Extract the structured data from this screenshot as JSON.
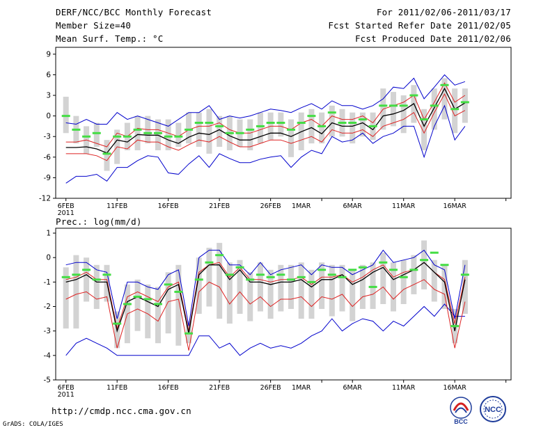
{
  "header": {
    "title": "DERF/NCC/BCC Monthly Forecast",
    "member_size": "Member Size=40",
    "variable1": "Mean Surf. Temp.: °C",
    "period": "For 2011/02/06-2011/03/17",
    "started": "Fcst Started Refer Date 2011/02/05",
    "produced": "Fcst Produced Date 2011/02/06"
  },
  "footer": {
    "url": "http://cmdp.ncc.cma.gov.cn",
    "credit": "GrADS: COLA/IGES",
    "logo_left": "BCC",
    "logo_right": "NCC"
  },
  "colors": {
    "box": "#d3d3d3",
    "median": "#44dd44",
    "mean": "#000000",
    "spread": "#dd2222",
    "extreme": "#0000cc",
    "frame": "#000000"
  },
  "chart_data": [
    {
      "type": "line",
      "title": "Mean Surf. Temp.: °C",
      "x": [
        1,
        2,
        3,
        4,
        5,
        6,
        7,
        8,
        9,
        10,
        11,
        12,
        13,
        14,
        15,
        16,
        17,
        18,
        19,
        20,
        21,
        22,
        23,
        24,
        25,
        26,
        27,
        28,
        29,
        30,
        31,
        32,
        33,
        34,
        35,
        36,
        37,
        38,
        39,
        40
      ],
      "x_tick_positions": [
        1,
        6,
        11,
        16,
        21,
        26,
        29,
        34,
        39,
        44
      ],
      "x_tick_labels": [
        "6FEB",
        "11FEB",
        "16FEB",
        "21FEB",
        "26FEB",
        "1MAR",
        "6MAR",
        "11MAR",
        "16MAR"
      ],
      "x_tick_label_positions": [
        1,
        6,
        11,
        16,
        21,
        24,
        29,
        34,
        39
      ],
      "year_label": "2011",
      "ylim": [
        -12,
        10
      ],
      "y_ticks": [
        -12,
        -9,
        -6,
        -3,
        0,
        3,
        6,
        9
      ],
      "series": [
        {
          "name": "ensemble-max",
          "values": [
            -9.8,
            -8.8,
            -8.8,
            -8.5,
            -9.5,
            -7.5,
            -7.5,
            -6.5,
            -5.8,
            -6.0,
            -8.3,
            -8.5,
            -7.0,
            -5.8,
            -7.5,
            -5.5,
            -6.2,
            -6.8,
            -6.8,
            -6.3,
            -6.0,
            -5.8,
            -7.5,
            -6.0,
            -5.0,
            -5.5,
            -3.0,
            -3.8,
            -3.5,
            -2.5,
            -4.0,
            -3.0,
            -2.5,
            -1.5,
            -1.5,
            -6.0,
            -1.5,
            1.5,
            -3.5,
            -1.5
          ]
        },
        {
          "name": "ensemble-min-bound",
          "values": [
            -1.0,
            -1.2,
            -0.5,
            -1.2,
            -1.2,
            0.5,
            -0.5,
            0.0,
            -0.5,
            -1.0,
            -1.5,
            -0.5,
            0.5,
            0.5,
            1.5,
            -0.5,
            0.0,
            -0.3,
            0.0,
            0.5,
            1.0,
            0.8,
            0.5,
            1.2,
            1.8,
            1.0,
            2.2,
            1.5,
            1.5,
            1.0,
            1.5,
            2.5,
            4.2,
            4.0,
            5.5,
            2.5,
            4.2,
            6.0,
            4.5,
            5.0
          ]
        },
        {
          "name": "spread-low",
          "values": [
            -5.5,
            -5.5,
            -5.5,
            -5.8,
            -6.5,
            -4.5,
            -4.8,
            -3.5,
            -3.8,
            -3.8,
            -4.5,
            -5.0,
            -4.2,
            -3.5,
            -3.8,
            -3.0,
            -3.8,
            -4.5,
            -4.5,
            -4.0,
            -3.5,
            -3.5,
            -4.0,
            -3.5,
            -3.0,
            -3.8,
            -2.0,
            -2.5,
            -2.5,
            -2.0,
            -3.0,
            -1.5,
            -1.0,
            -0.5,
            0.5,
            -2.5,
            0.5,
            3.2,
            0.0,
            0.8
          ]
        },
        {
          "name": "spread-high",
          "values": [
            -3.8,
            -3.8,
            -3.5,
            -4.0,
            -4.5,
            -2.5,
            -3.0,
            -1.8,
            -2.0,
            -2.0,
            -2.5,
            -3.0,
            -2.0,
            -1.5,
            -1.5,
            -1.0,
            -2.0,
            -2.5,
            -2.5,
            -2.0,
            -1.5,
            -1.5,
            -2.0,
            -1.0,
            -0.5,
            -1.5,
            0.0,
            -0.5,
            -0.5,
            0.0,
            -1.0,
            1.0,
            1.5,
            2.0,
            3.0,
            -0.5,
            2.0,
            4.8,
            2.0,
            3.0
          ]
        },
        {
          "name": "ensemble-mean",
          "values": [
            -4.6,
            -4.6,
            -4.5,
            -4.8,
            -5.4,
            -3.5,
            -3.8,
            -2.7,
            -2.8,
            -2.8,
            -3.5,
            -4.0,
            -3.1,
            -2.5,
            -2.7,
            -2.0,
            -2.9,
            -3.5,
            -3.5,
            -3.0,
            -2.5,
            -2.5,
            -3.0,
            -2.3,
            -1.7,
            -2.6,
            -1.0,
            -1.5,
            -1.5,
            -1.0,
            -2.0,
            0.0,
            0.3,
            0.8,
            1.8,
            -1.5,
            1.2,
            4.0,
            1.0,
            1.9
          ]
        },
        {
          "name": "ensemble-median",
          "values": [
            0.0,
            -2.0,
            -3.0,
            -2.5,
            -5.5,
            -3.0,
            -3.0,
            -2.0,
            -2.5,
            -2.5,
            -3.0,
            -3.0,
            -2.0,
            -1.0,
            -1.0,
            -1.5,
            -2.5,
            -2.5,
            -2.0,
            -1.5,
            -1.0,
            -1.0,
            -2.0,
            -1.0,
            0.0,
            -1.5,
            0.5,
            -1.0,
            -1.0,
            -0.5,
            -1.5,
            1.5,
            1.5,
            1.5,
            3.0,
            -0.5,
            1.5,
            4.5,
            1.0,
            2.0
          ]
        },
        {
          "name": "box-low",
          "values": [
            -2.5,
            -4.0,
            -5.5,
            -4.5,
            -8.0,
            -7.0,
            -5.0,
            -5.0,
            -4.0,
            -5.0,
            -5.0,
            -4.5,
            -4.0,
            -4.5,
            -5.5,
            -4.5,
            -5.0,
            -4.5,
            -5.0,
            -4.0,
            -3.5,
            -3.0,
            -6.0,
            -5.0,
            -4.0,
            -4.0,
            -3.0,
            -3.0,
            -4.0,
            -3.0,
            -3.5,
            -2.0,
            -1.5,
            -2.5,
            -1.0,
            -5.0,
            -2.0,
            -0.5,
            -2.5,
            -1.0
          ]
        },
        {
          "name": "box-high",
          "values": [
            2.8,
            0.0,
            -1.5,
            -1.0,
            -3.5,
            -2.0,
            -1.0,
            0.0,
            0.0,
            -0.5,
            -0.5,
            -1.0,
            0.5,
            0.5,
            1.0,
            0.0,
            0.0,
            -0.5,
            -0.5,
            0.5,
            0.5,
            0.5,
            -0.5,
            0.5,
            1.0,
            0.5,
            1.5,
            1.0,
            0.5,
            0.5,
            0.5,
            4.0,
            3.5,
            3.0,
            4.5,
            1.0,
            4.0,
            5.5,
            4.0,
            4.0
          ]
        }
      ]
    },
    {
      "type": "line",
      "title": "Prec.: log(mm/d)",
      "x": [
        1,
        2,
        3,
        4,
        5,
        6,
        7,
        8,
        9,
        10,
        11,
        12,
        13,
        14,
        15,
        16,
        17,
        18,
        19,
        20,
        21,
        22,
        23,
        24,
        25,
        26,
        27,
        28,
        29,
        30,
        31,
        32,
        33,
        34,
        35,
        36,
        37,
        38,
        39,
        40
      ],
      "x_tick_positions": [
        1,
        6,
        11,
        16,
        21,
        26,
        29,
        34,
        39,
        44
      ],
      "x_tick_labels": [
        "6FEB",
        "11FEB",
        "16FEB",
        "21FEB",
        "26FEB",
        "1MAR",
        "6MAR",
        "11MAR",
        "16MAR"
      ],
      "x_tick_label_positions": [
        1,
        6,
        11,
        16,
        21,
        24,
        29,
        34,
        39
      ],
      "year_label": "2011",
      "ylim": [
        -5,
        1.2
      ],
      "y_ticks": [
        -5,
        -4,
        -3,
        -2,
        -1,
        0,
        1
      ],
      "series": [
        {
          "name": "ensemble-min",
          "values": [
            -4.0,
            -3.5,
            -3.3,
            -3.5,
            -3.7,
            -4.0,
            -4.0,
            -4.0,
            -4.0,
            -4.0,
            -4.0,
            -4.0,
            -4.0,
            -3.2,
            -3.2,
            -3.7,
            -3.5,
            -4.0,
            -3.7,
            -3.5,
            -3.7,
            -3.6,
            -3.7,
            -3.5,
            -3.2,
            -3.0,
            -2.5,
            -3.0,
            -2.7,
            -2.5,
            -2.6,
            -3.0,
            -2.6,
            -2.8,
            -2.4,
            -2.0,
            -2.4,
            -1.9,
            -2.4,
            -2.4
          ]
        },
        {
          "name": "ensemble-max",
          "values": [
            -0.3,
            -0.2,
            -0.2,
            -0.5,
            -0.6,
            -2.5,
            -1.0,
            -1.0,
            -1.2,
            -1.3,
            -0.7,
            -0.5,
            -2.8,
            0.0,
            0.3,
            0.3,
            -0.3,
            -0.3,
            -0.7,
            -0.2,
            -0.7,
            -0.5,
            -0.4,
            -0.3,
            -0.7,
            -0.3,
            -0.4,
            -0.4,
            -0.7,
            -0.5,
            -0.3,
            0.3,
            -0.2,
            -0.1,
            0.0,
            0.3,
            -0.3,
            -0.5,
            -2.5,
            -0.3
          ]
        },
        {
          "name": "spread-low",
          "values": [
            -1.7,
            -1.5,
            -1.4,
            -1.7,
            -1.6,
            -3.7,
            -2.3,
            -2.1,
            -2.3,
            -2.6,
            -1.8,
            -1.7,
            -3.8,
            -1.4,
            -1.0,
            -1.2,
            -1.9,
            -1.4,
            -1.9,
            -1.6,
            -2.0,
            -1.7,
            -1.7,
            -1.6,
            -2.0,
            -1.6,
            -1.7,
            -1.5,
            -2.0,
            -1.6,
            -1.5,
            -1.2,
            -1.7,
            -1.3,
            -1.1,
            -0.9,
            -1.3,
            -1.5,
            -3.7,
            -1.8
          ]
        },
        {
          "name": "spread-high",
          "values": [
            -0.9,
            -0.8,
            -0.6,
            -0.9,
            -0.9,
            -2.9,
            -1.6,
            -1.4,
            -1.6,
            -1.8,
            -1.2,
            -1.0,
            -3.0,
            -0.6,
            -0.3,
            -0.2,
            -0.8,
            -0.4,
            -0.9,
            -0.9,
            -1.0,
            -0.9,
            -0.9,
            -0.8,
            -1.1,
            -0.8,
            -0.8,
            -0.7,
            -1.0,
            -0.8,
            -0.5,
            -0.3,
            -0.8,
            -0.6,
            -0.5,
            -0.2,
            -0.6,
            -0.9,
            -2.7,
            -0.8
          ]
        },
        {
          "name": "ensemble-mean",
          "values": [
            -1.0,
            -0.9,
            -0.7,
            -1.0,
            -1.0,
            -3.0,
            -1.8,
            -1.6,
            -1.8,
            -2.0,
            -1.3,
            -1.1,
            -3.1,
            -0.7,
            -0.3,
            -0.3,
            -0.9,
            -0.5,
            -1.0,
            -1.0,
            -1.1,
            -1.0,
            -1.0,
            -0.9,
            -1.2,
            -0.9,
            -0.9,
            -0.7,
            -1.1,
            -0.9,
            -0.6,
            -0.4,
            -0.9,
            -0.7,
            -0.5,
            -0.2,
            -0.6,
            -1.0,
            -3.0,
            -0.9
          ]
        },
        {
          "name": "ensemble-median",
          "values": [
            -0.8,
            -0.7,
            -0.5,
            -0.9,
            -0.7,
            -2.7,
            -1.9,
            -1.6,
            -1.7,
            -1.9,
            -1.1,
            -1.4,
            -3.1,
            -0.9,
            -0.2,
            0.1,
            -0.7,
            -0.4,
            -0.9,
            -0.7,
            -0.8,
            -0.7,
            -0.9,
            -0.8,
            -1.0,
            -0.5,
            -0.7,
            -0.8,
            -0.5,
            -0.4,
            -1.2,
            -0.2,
            -0.5,
            -0.8,
            -0.5,
            -0.1,
            0.2,
            -0.3,
            -2.8,
            -0.7
          ]
        },
        {
          "name": "box-low",
          "values": [
            -2.9,
            -2.9,
            -1.8,
            -2.1,
            -1.8,
            -3.7,
            -3.5,
            -3.0,
            -3.3,
            -3.5,
            -3.1,
            -3.6,
            -3.5,
            -2.3,
            -2.0,
            -2.5,
            -2.7,
            -2.3,
            -2.6,
            -2.2,
            -2.5,
            -2.2,
            -2.1,
            -2.5,
            -2.5,
            -2.1,
            -2.4,
            -2.2,
            -2.6,
            -2.1,
            -2.1,
            -1.9,
            -2.2,
            -1.9,
            -1.5,
            -1.3,
            -1.8,
            -2.1,
            -3.5,
            -2.3
          ]
        },
        {
          "name": "box-high",
          "values": [
            -0.4,
            0.1,
            0.0,
            -0.3,
            -0.3,
            -2.2,
            -1.1,
            -0.9,
            -1.1,
            -1.2,
            -0.6,
            -0.3,
            -2.6,
            0.0,
            0.4,
            0.6,
            -0.2,
            -0.1,
            -0.6,
            -0.2,
            -0.5,
            -0.3,
            -0.3,
            -0.2,
            -0.5,
            -0.2,
            -0.3,
            -0.3,
            -0.5,
            -0.3,
            -0.2,
            0.2,
            -0.2,
            -0.1,
            0.1,
            0.7,
            -0.1,
            -0.3,
            -2.1,
            -0.1
          ]
        }
      ]
    }
  ]
}
